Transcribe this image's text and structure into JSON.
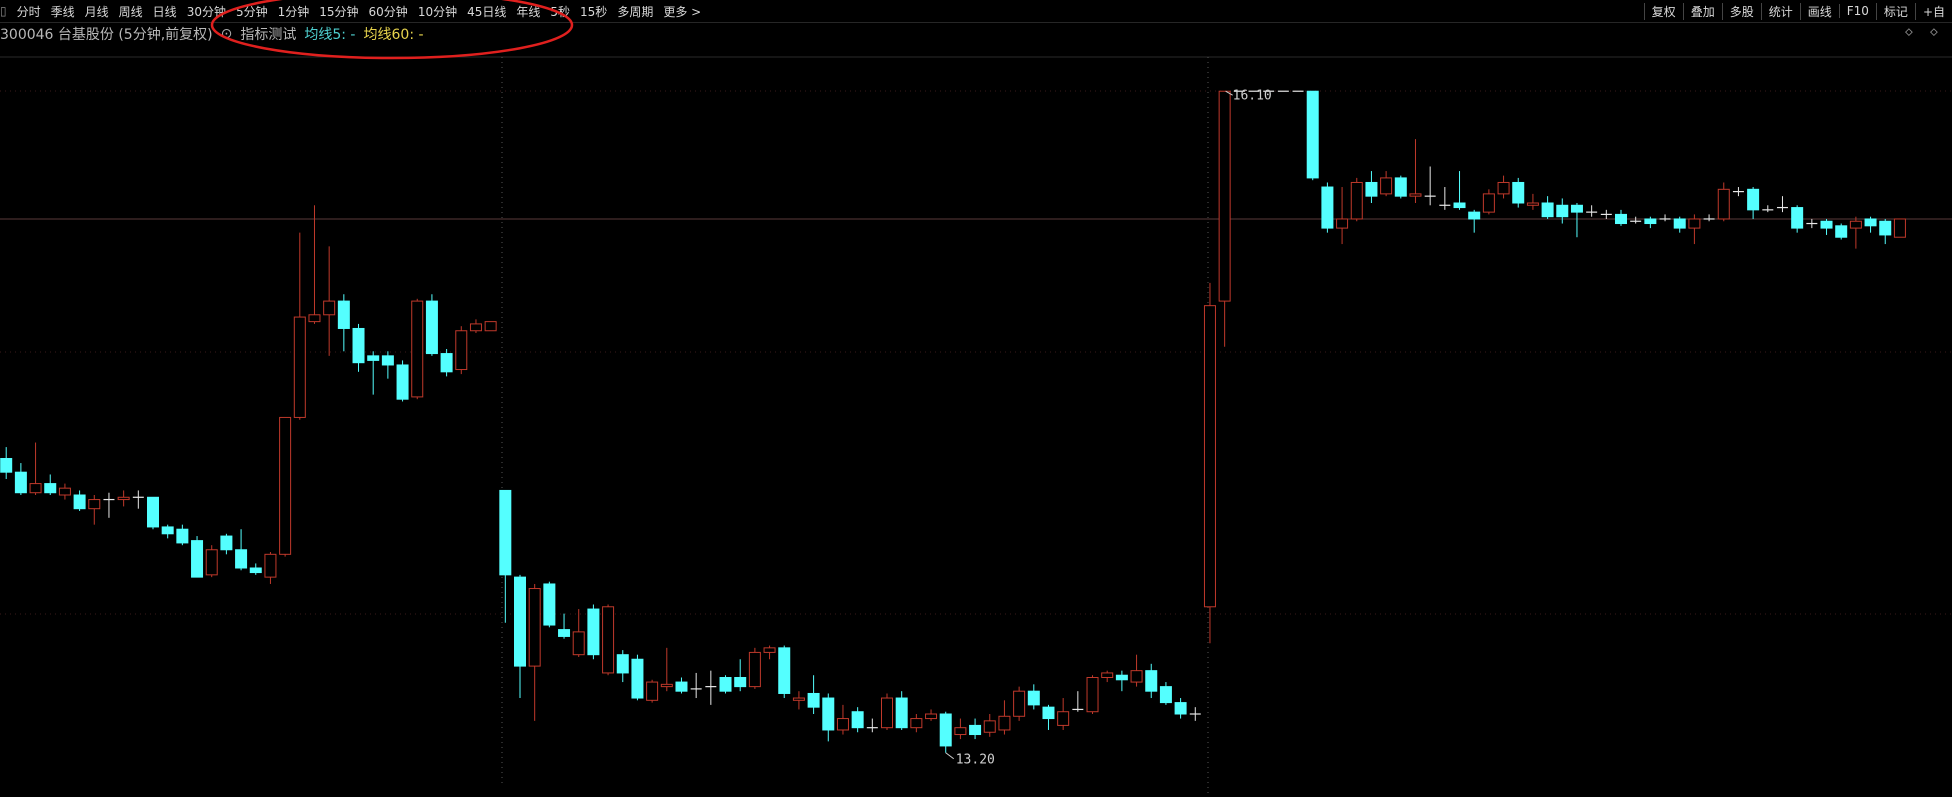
{
  "toolbar": {
    "left": [
      "分时",
      "季线",
      "月线",
      "周线",
      "日线",
      "30分钟",
      "5分钟",
      "1分钟",
      "15分钟",
      "60分钟",
      "10分钟",
      "45日线",
      "年线",
      "5秒",
      "15秒",
      "多周期",
      "更多 >"
    ],
    "right": [
      "复权",
      "叠加",
      "多股",
      "统计",
      "画线",
      "F10",
      "标记",
      "+自"
    ]
  },
  "header": {
    "security": "300046 台基股份 (5分钟,前复权)",
    "indicator": "指标测试",
    "ma5": "均线5: -",
    "ma60": "均线60: -"
  },
  "chart_data": {
    "type": "candlestick",
    "ylim": [
      13.05,
      16.25
    ],
    "up_color": "#c0392b",
    "down_color": "#54ffff",
    "flat_color": "#e8e8e8",
    "max_label": "16.10",
    "min_label": "13.20",
    "ohlc": [
      [
        14.49,
        14.54,
        14.4,
        14.43
      ],
      [
        14.43,
        14.47,
        14.33,
        14.34
      ],
      [
        14.34,
        14.56,
        14.33,
        14.38
      ],
      [
        14.38,
        14.42,
        14.33,
        14.34
      ],
      [
        14.33,
        14.38,
        14.31,
        14.36
      ],
      [
        14.33,
        14.35,
        14.26,
        14.27
      ],
      [
        14.27,
        14.33,
        14.2,
        14.31
      ],
      [
        14.31,
        14.34,
        14.23,
        14.31
      ],
      [
        14.31,
        14.35,
        14.28,
        14.32
      ],
      [
        14.32,
        14.35,
        14.27,
        14.32
      ],
      [
        14.32,
        14.32,
        14.18,
        14.19
      ],
      [
        14.19,
        14.2,
        14.14,
        14.16
      ],
      [
        14.18,
        14.2,
        14.11,
        14.12
      ],
      [
        14.13,
        14.15,
        13.97,
        13.97
      ],
      [
        13.98,
        14.11,
        13.97,
        14.09
      ],
      [
        14.15,
        14.16,
        14.07,
        14.09
      ],
      [
        14.09,
        14.18,
        14.0,
        14.01
      ],
      [
        14.01,
        14.03,
        13.98,
        13.99
      ],
      [
        13.97,
        14.08,
        13.94,
        14.07
      ],
      [
        14.07,
        14.67,
        14.06,
        14.67
      ],
      [
        14.67,
        15.48,
        14.66,
        15.11
      ],
      [
        15.09,
        15.6,
        15.08,
        15.12
      ],
      [
        15.12,
        15.42,
        14.94,
        15.18
      ],
      [
        15.18,
        15.21,
        14.96,
        15.06
      ],
      [
        15.06,
        15.08,
        14.87,
        14.91
      ],
      [
        14.94,
        14.96,
        14.77,
        14.92
      ],
      [
        14.94,
        14.96,
        14.84,
        14.9
      ],
      [
        14.9,
        14.92,
        14.74,
        14.75
      ],
      [
        14.76,
        15.19,
        14.75,
        15.18
      ],
      [
        15.18,
        15.21,
        14.94,
        14.95
      ],
      [
        14.95,
        14.97,
        14.85,
        14.87
      ],
      [
        14.88,
        15.07,
        14.86,
        15.05
      ],
      [
        15.05,
        15.1,
        15.04,
        15.08
      ],
      [
        15.05,
        15.09,
        15.05,
        15.09
      ],
      [
        14.35,
        14.35,
        13.77,
        13.98
      ],
      [
        13.97,
        13.98,
        13.44,
        13.58
      ],
      [
        13.58,
        13.94,
        13.34,
        13.92
      ],
      [
        13.94,
        13.95,
        13.75,
        13.76
      ],
      [
        13.74,
        13.81,
        13.7,
        13.71
      ],
      [
        13.63,
        13.83,
        13.62,
        13.73
      ],
      [
        13.83,
        13.85,
        13.61,
        13.63
      ],
      [
        13.55,
        13.85,
        13.54,
        13.84
      ],
      [
        13.63,
        13.65,
        13.51,
        13.55
      ],
      [
        13.61,
        13.63,
        13.43,
        13.44
      ],
      [
        13.43,
        13.52,
        13.42,
        13.51
      ],
      [
        13.49,
        13.66,
        13.47,
        13.5
      ],
      [
        13.51,
        13.53,
        13.46,
        13.47
      ],
      [
        13.48,
        13.55,
        13.44,
        13.48
      ],
      [
        13.49,
        13.56,
        13.41,
        13.49
      ],
      [
        13.53,
        13.54,
        13.46,
        13.47
      ],
      [
        13.53,
        13.61,
        13.47,
        13.49
      ],
      [
        13.49,
        13.66,
        13.48,
        13.64
      ],
      [
        13.64,
        13.67,
        13.61,
        13.66
      ],
      [
        13.66,
        13.67,
        13.44,
        13.46
      ],
      [
        13.43,
        13.47,
        13.39,
        13.44
      ],
      [
        13.46,
        13.54,
        13.37,
        13.4
      ],
      [
        13.44,
        13.46,
        13.25,
        13.3
      ],
      [
        13.3,
        13.41,
        13.28,
        13.35
      ],
      [
        13.38,
        13.4,
        13.29,
        13.31
      ],
      [
        13.31,
        13.35,
        13.29,
        13.31
      ],
      [
        13.31,
        13.46,
        13.3,
        13.44
      ],
      [
        13.44,
        13.47,
        13.3,
        13.31
      ],
      [
        13.31,
        13.37,
        13.29,
        13.35
      ],
      [
        13.35,
        13.39,
        13.34,
        13.37
      ],
      [
        13.37,
        13.38,
        13.2,
        13.23
      ],
      [
        13.28,
        13.35,
        13.26,
        13.31
      ],
      [
        13.32,
        13.35,
        13.26,
        13.28
      ],
      [
        13.29,
        13.37,
        13.27,
        13.34
      ],
      [
        13.3,
        13.43,
        13.28,
        13.36
      ],
      [
        13.36,
        13.49,
        13.34,
        13.47
      ],
      [
        13.47,
        13.5,
        13.39,
        13.41
      ],
      [
        13.4,
        13.41,
        13.3,
        13.35
      ],
      [
        13.32,
        13.44,
        13.3,
        13.38
      ],
      [
        13.39,
        13.47,
        13.38,
        13.39
      ],
      [
        13.38,
        13.54,
        13.37,
        13.53
      ],
      [
        13.53,
        13.56,
        13.51,
        13.55
      ],
      [
        13.54,
        13.56,
        13.47,
        13.52
      ],
      [
        13.51,
        13.63,
        13.49,
        13.56
      ],
      [
        13.56,
        13.59,
        13.44,
        13.47
      ],
      [
        13.49,
        13.51,
        13.41,
        13.42
      ],
      [
        13.42,
        13.44,
        13.35,
        13.37
      ],
      [
        13.37,
        13.4,
        13.34,
        13.37
      ],
      [
        13.84,
        15.26,
        13.68,
        15.16
      ],
      [
        15.18,
        16.1,
        14.98,
        16.1
      ],
      [
        16.1,
        16.1,
        16.1,
        16.1
      ],
      [
        16.1,
        16.1,
        16.1,
        16.1
      ],
      [
        16.1,
        16.1,
        16.1,
        16.1
      ],
      [
        16.1,
        16.1,
        16.1,
        16.1
      ],
      [
        16.1,
        16.1,
        16.1,
        16.1
      ],
      [
        16.1,
        16.1,
        15.71,
        15.72
      ],
      [
        15.68,
        15.7,
        15.48,
        15.5
      ],
      [
        15.5,
        15.68,
        15.43,
        15.54
      ],
      [
        15.54,
        15.72,
        15.53,
        15.7
      ],
      [
        15.7,
        15.75,
        15.61,
        15.64
      ],
      [
        15.65,
        15.75,
        15.64,
        15.72
      ],
      [
        15.72,
        15.73,
        15.63,
        15.64
      ],
      [
        15.64,
        15.89,
        15.61,
        15.65
      ],
      [
        15.64,
        15.77,
        15.6,
        15.64
      ],
      [
        15.6,
        15.68,
        15.58,
        15.6
      ],
      [
        15.61,
        15.75,
        15.58,
        15.59
      ],
      [
        15.57,
        15.58,
        15.48,
        15.54
      ],
      [
        15.57,
        15.67,
        15.56,
        15.65
      ],
      [
        15.65,
        15.73,
        15.63,
        15.7
      ],
      [
        15.7,
        15.72,
        15.59,
        15.61
      ],
      [
        15.6,
        15.65,
        15.58,
        15.61
      ],
      [
        15.61,
        15.64,
        15.54,
        15.55
      ],
      [
        15.6,
        15.63,
        15.52,
        15.55
      ],
      [
        15.6,
        15.61,
        15.46,
        15.57
      ],
      [
        15.57,
        15.6,
        15.55,
        15.57
      ],
      [
        15.56,
        15.58,
        15.54,
        15.56
      ],
      [
        15.56,
        15.58,
        15.51,
        15.52
      ],
      [
        15.53,
        15.55,
        15.52,
        15.53
      ],
      [
        15.54,
        15.55,
        15.5,
        15.52
      ],
      [
        15.54,
        15.56,
        15.53,
        15.54
      ],
      [
        15.54,
        15.55,
        15.48,
        15.5
      ],
      [
        15.5,
        15.56,
        15.43,
        15.54
      ],
      [
        15.54,
        15.56,
        15.53,
        15.54
      ],
      [
        15.54,
        15.7,
        15.53,
        15.67
      ],
      [
        15.66,
        15.68,
        15.64,
        15.66
      ],
      [
        15.67,
        15.68,
        15.54,
        15.58
      ],
      [
        15.58,
        15.6,
        15.57,
        15.58
      ],
      [
        15.59,
        15.64,
        15.57,
        15.59
      ],
      [
        15.59,
        15.6,
        15.48,
        15.5
      ],
      [
        15.52,
        15.54,
        15.5,
        15.52
      ],
      [
        15.53,
        15.54,
        15.47,
        15.5
      ],
      [
        15.51,
        15.52,
        15.45,
        15.46
      ],
      [
        15.5,
        15.55,
        15.41,
        15.53
      ],
      [
        15.54,
        15.55,
        15.48,
        15.51
      ],
      [
        15.53,
        15.54,
        15.43,
        15.47
      ],
      [
        15.46,
        15.54,
        15.46,
        15.54
      ]
    ]
  }
}
